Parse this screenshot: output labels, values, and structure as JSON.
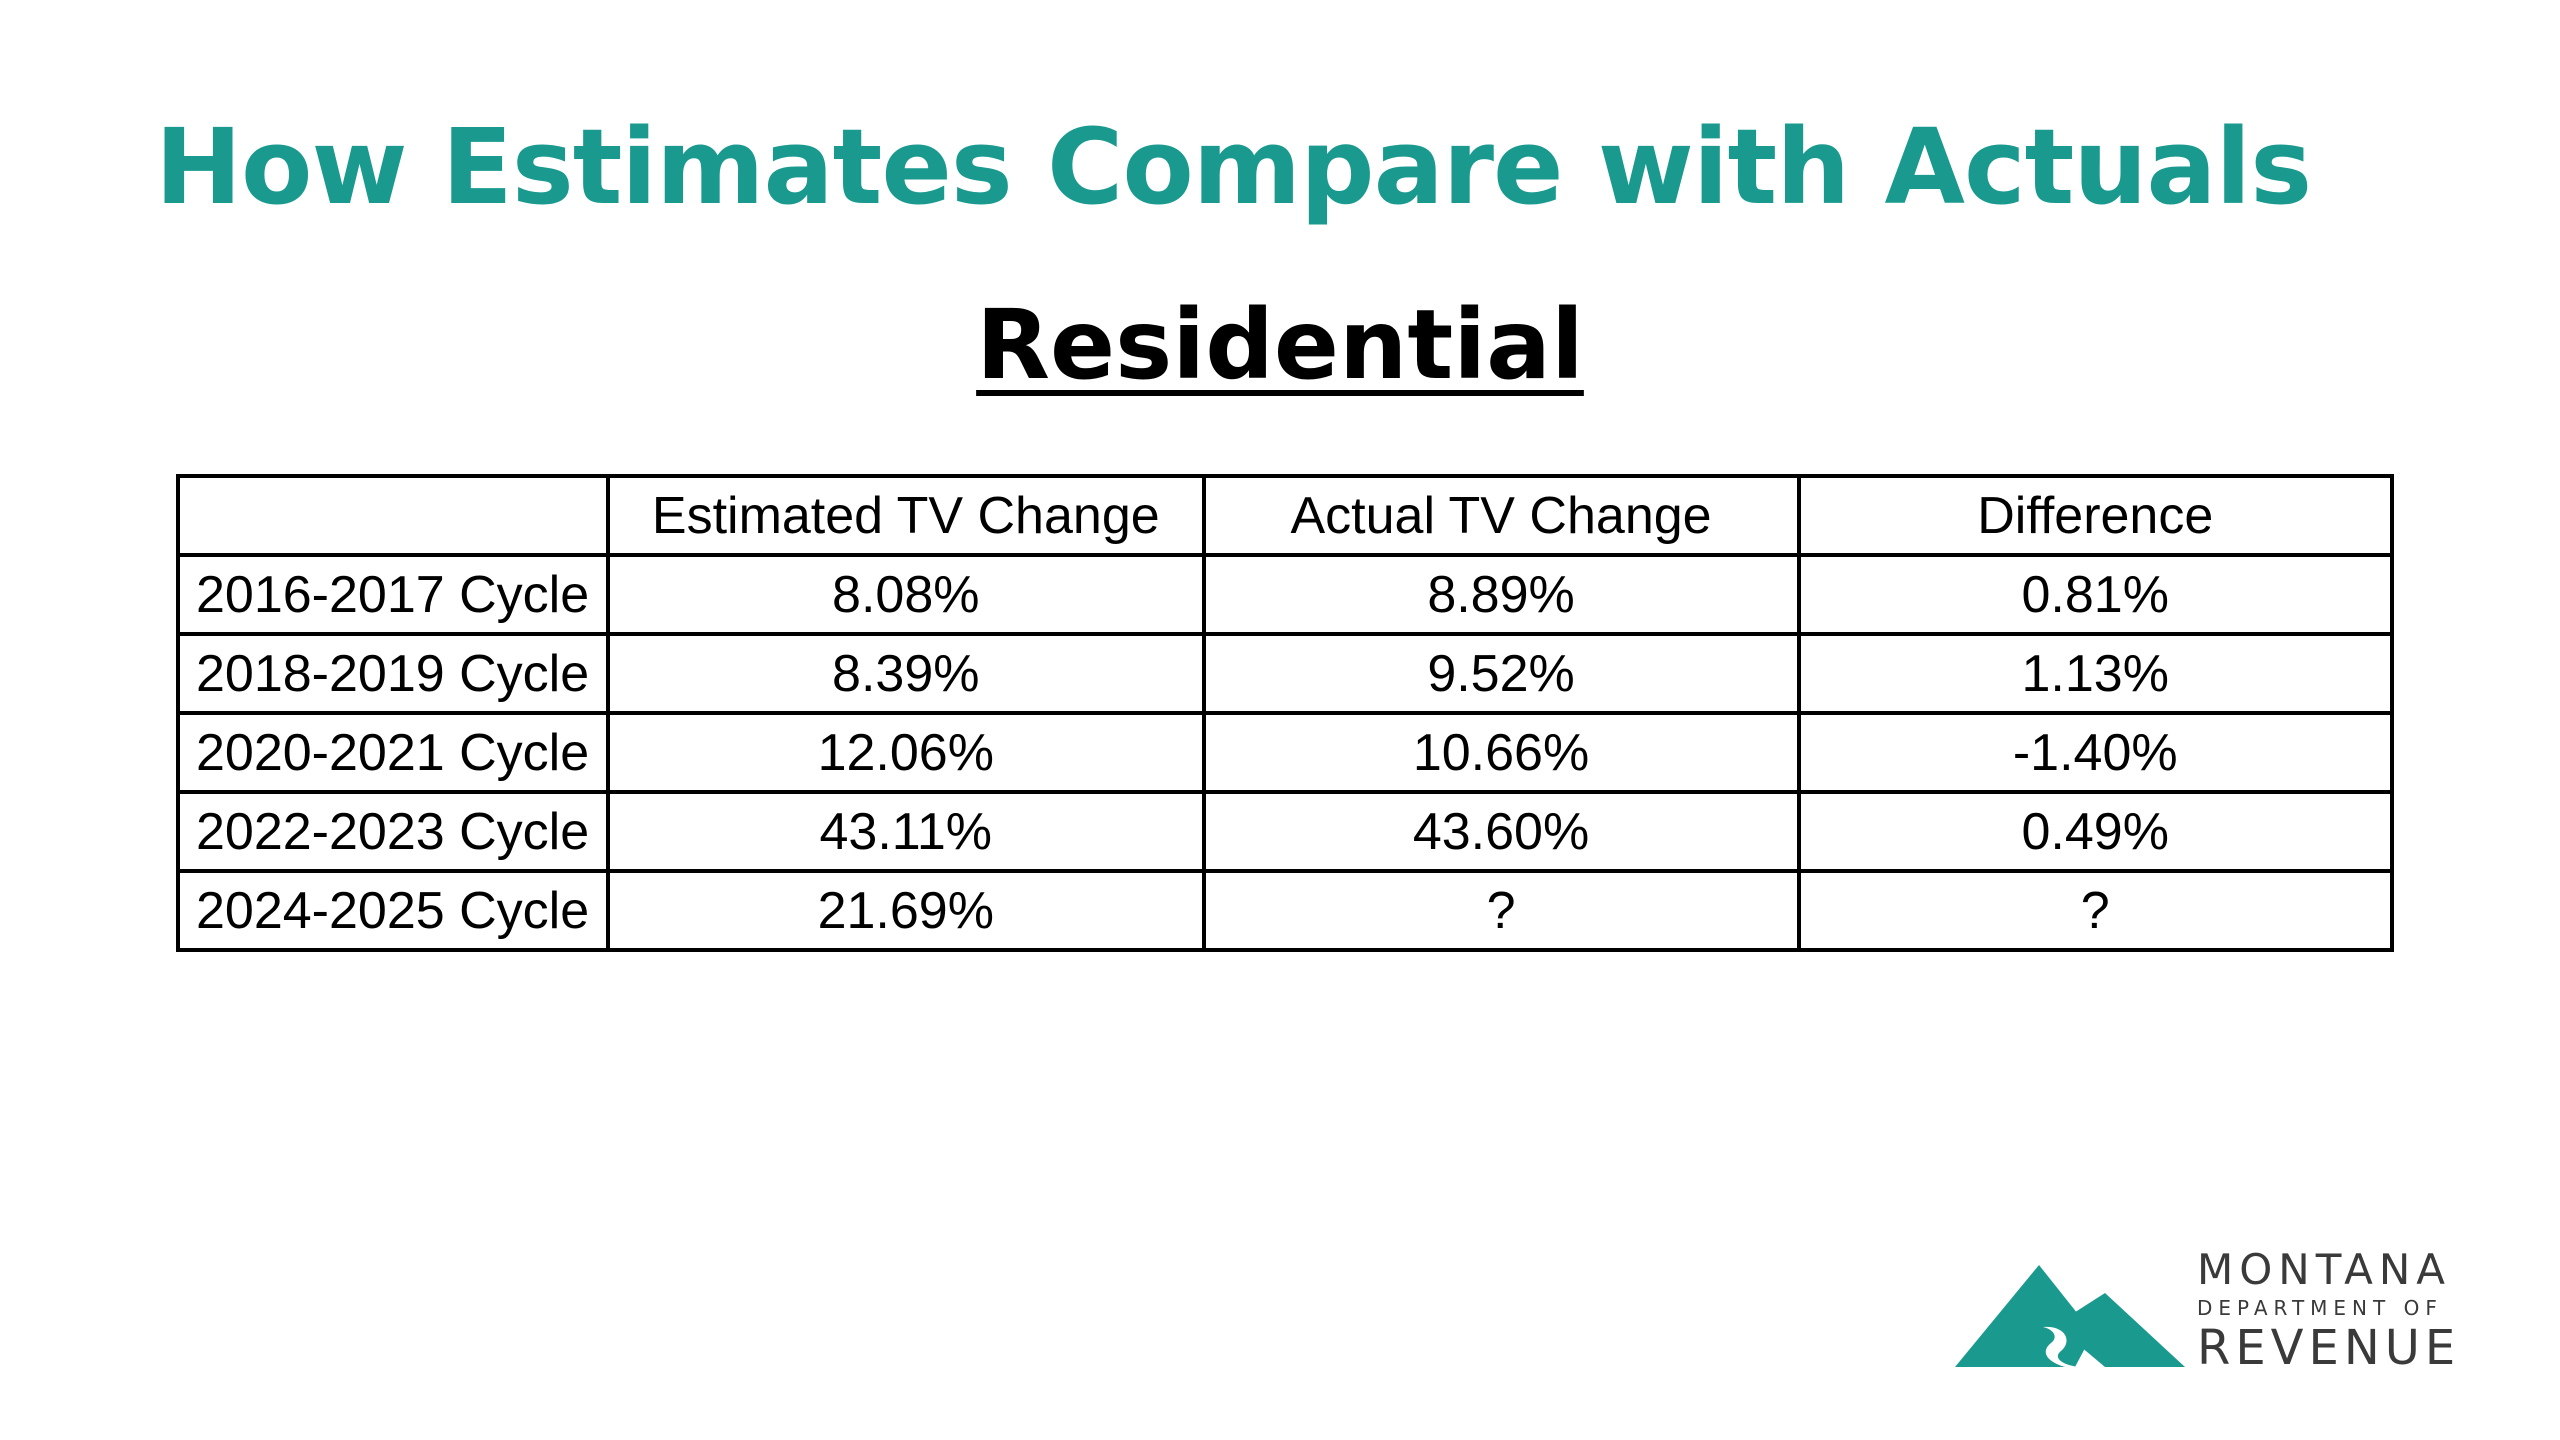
{
  "title": "How Estimates Compare with Actuals",
  "subtitle": "Residential",
  "table": {
    "headers": [
      "",
      "Estimated TV Change",
      "Actual TV Change",
      "Difference"
    ],
    "rows": [
      {
        "label": "2016-2017 Cycle",
        "estimated": "8.08%",
        "actual": "8.89%",
        "difference": "0.81%"
      },
      {
        "label": "2018-2019 Cycle",
        "estimated": "8.39%",
        "actual": "9.52%",
        "difference": "1.13%"
      },
      {
        "label": "2020-2021 Cycle",
        "estimated": "12.06%",
        "actual": "10.66%",
        "difference": "-1.40%"
      },
      {
        "label": "2022-2023 Cycle",
        "estimated": "43.11%",
        "actual": "43.60%",
        "difference": "0.49%"
      },
      {
        "label": "2024-2025 Cycle",
        "estimated": "21.69%",
        "actual": "?",
        "difference": "?"
      }
    ]
  },
  "logo": {
    "line1": "MONTANA",
    "line2": "DEPARTMENT OF",
    "line3": "REVENUE",
    "color": "#1a9a8e"
  },
  "colors": {
    "title": "#1a9a8e",
    "text": "#000000"
  }
}
